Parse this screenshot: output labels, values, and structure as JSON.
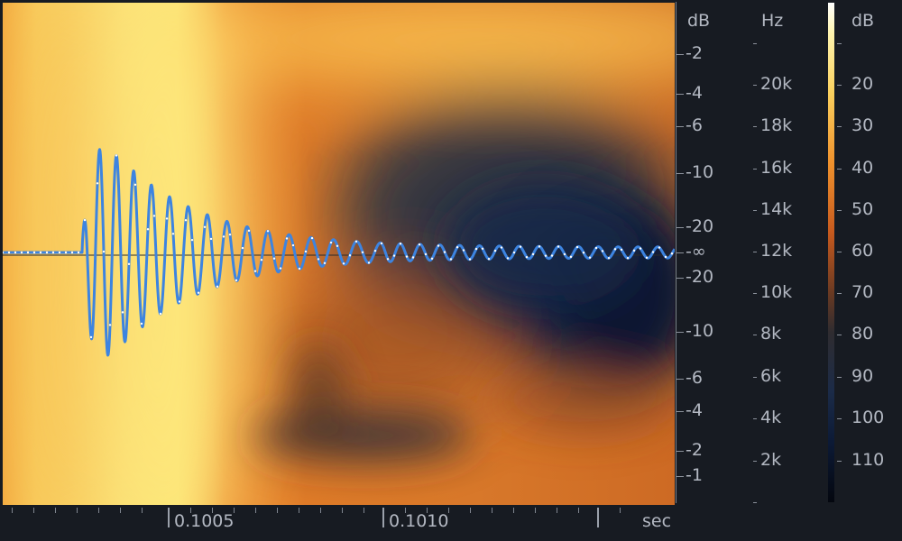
{
  "amplitude_scale": {
    "header": "dB",
    "labels": [
      "-2",
      "-4",
      "-6",
      "-10",
      "-20",
      "-∞",
      "-20",
      "-10",
      "-6",
      "-4",
      "-2",
      "-1"
    ]
  },
  "frequency_scale": {
    "header": "Hz",
    "labels": [
      "20k",
      "18k",
      "16k",
      "14k",
      "12k",
      "10k",
      "8k",
      "6k",
      "4k",
      "2k"
    ]
  },
  "colorbar_scale": {
    "header": "dB",
    "labels": [
      "20",
      "30",
      "40",
      "50",
      "60",
      "70",
      "80",
      "90",
      "100",
      "110"
    ]
  },
  "time_ruler": {
    "labels": [
      "0.1005",
      "0.1010"
    ],
    "unit": "sec"
  },
  "colors": {
    "waveform": "#3d84e0",
    "background": "#171b22",
    "scale_text": "#b3b8c2"
  }
}
